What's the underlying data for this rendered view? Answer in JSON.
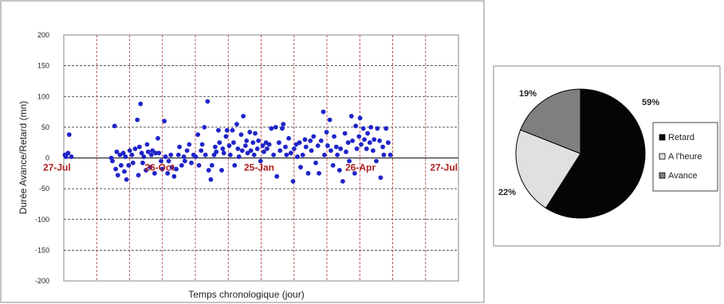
{
  "chart_data": [
    {
      "type": "scatter",
      "title": "",
      "xlabel": "Temps chronologique (jour)",
      "ylabel": "Durée Avance/Retard  (mn)",
      "ylim": [
        -200,
        200
      ],
      "yticks": [
        200,
        150,
        100,
        50,
        0,
        -50,
        -100,
        -150,
        -200
      ],
      "date_labels": [
        "27-Jul",
        "26-Oct",
        "25-Jan",
        "26-Apr",
        "27-Jul"
      ],
      "xlim": [
        "27-Jul",
        "27-Jul"
      ],
      "grid": true,
      "series": [
        {
          "color": "#1f24c8",
          "points": [
            {
              "x": 1,
              "y": 5
            },
            {
              "x": 2,
              "y": 2
            },
            {
              "x": 4,
              "y": 8
            },
            {
              "x": 5,
              "y": 38
            },
            {
              "x": 7,
              "y": 2
            },
            {
              "x": 44,
              "y": 0
            },
            {
              "x": 45,
              "y": -5
            },
            {
              "x": 47,
              "y": 52
            },
            {
              "x": 48,
              "y": -18
            },
            {
              "x": 49,
              "y": 10
            },
            {
              "x": 50,
              "y": -28
            },
            {
              "x": 52,
              "y": 5
            },
            {
              "x": 53,
              "y": -12
            },
            {
              "x": 55,
              "y": 8
            },
            {
              "x": 56,
              "y": -22
            },
            {
              "x": 57,
              "y": 2
            },
            {
              "x": 58,
              "y": -35
            },
            {
              "x": 60,
              "y": -12
            },
            {
              "x": 61,
              "y": 12
            },
            {
              "x": 63,
              "y": 5
            },
            {
              "x": 64,
              "y": -8
            },
            {
              "x": 66,
              "y": 15
            },
            {
              "x": 68,
              "y": 62
            },
            {
              "x": 69,
              "y": -28
            },
            {
              "x": 70,
              "y": 18
            },
            {
              "x": 71,
              "y": 88
            },
            {
              "x": 72,
              "y": 8
            },
            {
              "x": 73,
              "y": -8
            },
            {
              "x": 74,
              "y": 2
            },
            {
              "x": 76,
              "y": -20
            },
            {
              "x": 77,
              "y": 22
            },
            {
              "x": 78,
              "y": 10
            },
            {
              "x": 80,
              "y": -15
            },
            {
              "x": 81,
              "y": 5
            },
            {
              "x": 82,
              "y": 12
            },
            {
              "x": 84,
              "y": -25
            },
            {
              "x": 85,
              "y": 8
            },
            {
              "x": 87,
              "y": 32
            },
            {
              "x": 88,
              "y": 8
            },
            {
              "x": 90,
              "y": -5
            },
            {
              "x": 91,
              "y": -18
            },
            {
              "x": 93,
              "y": 60
            },
            {
              "x": 94,
              "y": 2
            },
            {
              "x": 96,
              "y": -25
            },
            {
              "x": 97,
              "y": -5
            },
            {
              "x": 99,
              "y": 5
            },
            {
              "x": 100,
              "y": -15
            },
            {
              "x": 102,
              "y": -30
            },
            {
              "x": 104,
              "y": -18
            },
            {
              "x": 106,
              "y": 5
            },
            {
              "x": 107,
              "y": 18
            },
            {
              "x": 109,
              "y": -12
            },
            {
              "x": 111,
              "y": 2
            },
            {
              "x": 112,
              "y": -5
            },
            {
              "x": 114,
              "y": 12
            },
            {
              "x": 116,
              "y": 22
            },
            {
              "x": 118,
              "y": -8
            },
            {
              "x": 120,
              "y": 5
            },
            {
              "x": 122,
              "y": 2
            },
            {
              "x": 124,
              "y": 38
            },
            {
              "x": 125,
              "y": -12
            },
            {
              "x": 127,
              "y": 12
            },
            {
              "x": 128,
              "y": 22
            },
            {
              "x": 130,
              "y": 50
            },
            {
              "x": 131,
              "y": 5
            },
            {
              "x": 133,
              "y": 92
            },
            {
              "x": 134,
              "y": -20
            },
            {
              "x": 136,
              "y": -35
            },
            {
              "x": 137,
              "y": -12
            },
            {
              "x": 139,
              "y": 5
            },
            {
              "x": 140,
              "y": 18
            },
            {
              "x": 141,
              "y": 10
            },
            {
              "x": 143,
              "y": 45
            },
            {
              "x": 144,
              "y": 25
            },
            {
              "x": 146,
              "y": -20
            },
            {
              "x": 147,
              "y": 15
            },
            {
              "x": 148,
              "y": 8
            },
            {
              "x": 150,
              "y": 35
            },
            {
              "x": 151,
              "y": 45
            },
            {
              "x": 153,
              "y": 20
            },
            {
              "x": 154,
              "y": 5
            },
            {
              "x": 156,
              "y": 45
            },
            {
              "x": 157,
              "y": 25
            },
            {
              "x": 158,
              "y": -12
            },
            {
              "x": 160,
              "y": 55
            },
            {
              "x": 161,
              "y": 15
            },
            {
              "x": 162,
              "y": 2
            },
            {
              "x": 164,
              "y": 38
            },
            {
              "x": 165,
              "y": 12
            },
            {
              "x": 166,
              "y": 68
            },
            {
              "x": 168,
              "y": 20
            },
            {
              "x": 169,
              "y": 28
            },
            {
              "x": 170,
              "y": 8
            },
            {
              "x": 172,
              "y": 42
            },
            {
              "x": 173,
              "y": 12
            },
            {
              "x": 175,
              "y": 25
            },
            {
              "x": 176,
              "y": 5
            },
            {
              "x": 177,
              "y": 40
            },
            {
              "x": 179,
              "y": 15
            },
            {
              "x": 180,
              "y": 28
            },
            {
              "x": 182,
              "y": -5
            },
            {
              "x": 184,
              "y": 20
            },
            {
              "x": 185,
              "y": 10
            },
            {
              "x": 187,
              "y": 25
            },
            {
              "x": 188,
              "y": 15
            },
            {
              "x": 190,
              "y": 22
            },
            {
              "x": 192,
              "y": 48
            },
            {
              "x": 194,
              "y": 5
            },
            {
              "x": 196,
              "y": 50
            },
            {
              "x": 197,
              "y": -30
            },
            {
              "x": 199,
              "y": 25
            },
            {
              "x": 200,
              "y": 12
            },
            {
              "x": 202,
              "y": 48
            },
            {
              "x": 203,
              "y": 55
            },
            {
              "x": 205,
              "y": 18
            },
            {
              "x": 206,
              "y": 5
            },
            {
              "x": 208,
              "y": 32
            },
            {
              "x": 210,
              "y": 8
            },
            {
              "x": 212,
              "y": -38
            },
            {
              "x": 213,
              "y": 15
            },
            {
              "x": 215,
              "y": 22
            },
            {
              "x": 216,
              "y": 2
            },
            {
              "x": 218,
              "y": 25
            },
            {
              "x": 219,
              "y": -15
            },
            {
              "x": 221,
              "y": 5
            },
            {
              "x": 223,
              "y": 30
            },
            {
              "x": 224,
              "y": 18
            },
            {
              "x": 226,
              "y": -25
            },
            {
              "x": 228,
              "y": 28
            },
            {
              "x": 229,
              "y": 12
            },
            {
              "x": 231,
              "y": 35
            },
            {
              "x": 233,
              "y": -8
            },
            {
              "x": 235,
              "y": 20
            },
            {
              "x": 236,
              "y": -25
            },
            {
              "x": 238,
              "y": 28
            },
            {
              "x": 240,
              "y": 75
            },
            {
              "x": 241,
              "y": 5
            },
            {
              "x": 243,
              "y": 42
            },
            {
              "x": 244,
              "y": 20
            },
            {
              "x": 246,
              "y": 62
            },
            {
              "x": 247,
              "y": 12
            },
            {
              "x": 249,
              "y": -12
            },
            {
              "x": 250,
              "y": 35
            },
            {
              "x": 252,
              "y": 18
            },
            {
              "x": 253,
              "y": 5
            },
            {
              "x": 255,
              "y": -20
            },
            {
              "x": 256,
              "y": 15
            },
            {
              "x": 258,
              "y": -38
            },
            {
              "x": 260,
              "y": 40
            },
            {
              "x": 261,
              "y": 10
            },
            {
              "x": 263,
              "y": 25
            },
            {
              "x": 264,
              "y": -5
            },
            {
              "x": 266,
              "y": 68
            },
            {
              "x": 267,
              "y": 28
            },
            {
              "x": 269,
              "y": -25
            },
            {
              "x": 270,
              "y": 52
            },
            {
              "x": 271,
              "y": 15
            },
            {
              "x": 273,
              "y": 35
            },
            {
              "x": 274,
              "y": 65
            },
            {
              "x": 275,
              "y": 22
            },
            {
              "x": 277,
              "y": 48
            },
            {
              "x": 278,
              "y": 30
            },
            {
              "x": 280,
              "y": 15
            },
            {
              "x": 281,
              "y": 40
            },
            {
              "x": 283,
              "y": 25
            },
            {
              "x": 284,
              "y": 50
            },
            {
              "x": 286,
              "y": 12
            },
            {
              "x": 287,
              "y": 30
            },
            {
              "x": 289,
              "y": -5
            },
            {
              "x": 290,
              "y": 48
            },
            {
              "x": 292,
              "y": 28
            },
            {
              "x": 293,
              "y": -32
            },
            {
              "x": 295,
              "y": 18
            },
            {
              "x": 296,
              "y": 5
            },
            {
              "x": 298,
              "y": 48
            },
            {
              "x": 300,
              "y": 25
            },
            {
              "x": 302,
              "y": 5
            }
          ]
        }
      ]
    },
    {
      "type": "pie",
      "title": "",
      "slices": [
        {
          "label": "Retard",
          "value": 59,
          "display": "59%",
          "color": "#050505"
        },
        {
          "label": "A l'heure",
          "value": 22,
          "display": "22%",
          "color": "#e0e0e0"
        },
        {
          "label": "Avance",
          "value": 19,
          "display": "19%",
          "color": "#7f7f7f"
        }
      ],
      "legend": "right"
    }
  ]
}
